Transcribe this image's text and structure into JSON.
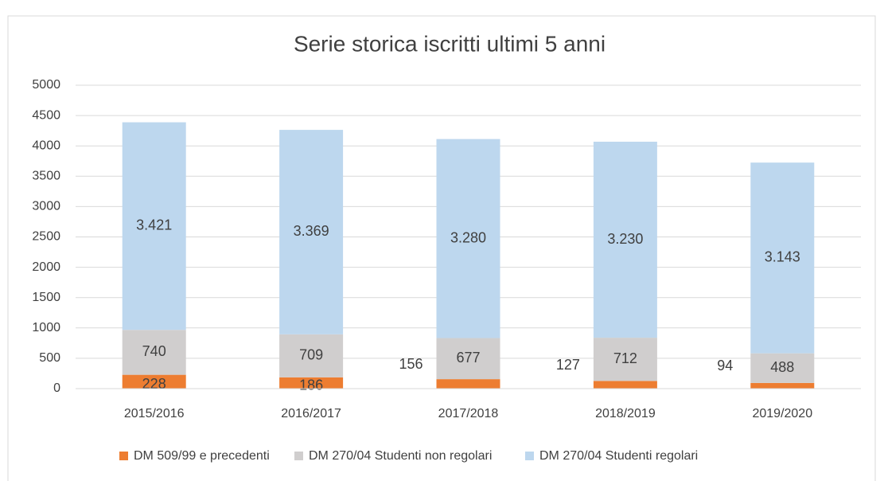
{
  "chart_data": {
    "type": "bar",
    "stacked": true,
    "title": "Serie storica iscritti ultimi 5 anni",
    "categories": [
      "2015/2016",
      "2016/2017",
      "2017/2018",
      "2018/2019",
      "2019/2020"
    ],
    "series": [
      {
        "name": "DM 509/99 e precedenti",
        "color": "#ed7d31",
        "values": [
          228,
          186,
          156,
          127,
          94
        ]
      },
      {
        "name": "DM 270/04 Studenti non regolari",
        "color": "#d0cece",
        "values": [
          740,
          709,
          677,
          712,
          488
        ]
      },
      {
        "name": "DM 270/04 Studenti regolari",
        "color": "#bdd7ee",
        "values": [
          3421,
          3369,
          3280,
          3230,
          3143
        ],
        "value_labels": [
          "3.421",
          "3.369",
          "3.280",
          "3.230",
          "3.143"
        ]
      }
    ],
    "ylim": [
      0,
      5000
    ],
    "yticks": [
      0,
      500,
      1000,
      1500,
      2000,
      2500,
      3000,
      3500,
      4000,
      4500,
      5000
    ],
    "grid": true,
    "legend": "bottom"
  }
}
